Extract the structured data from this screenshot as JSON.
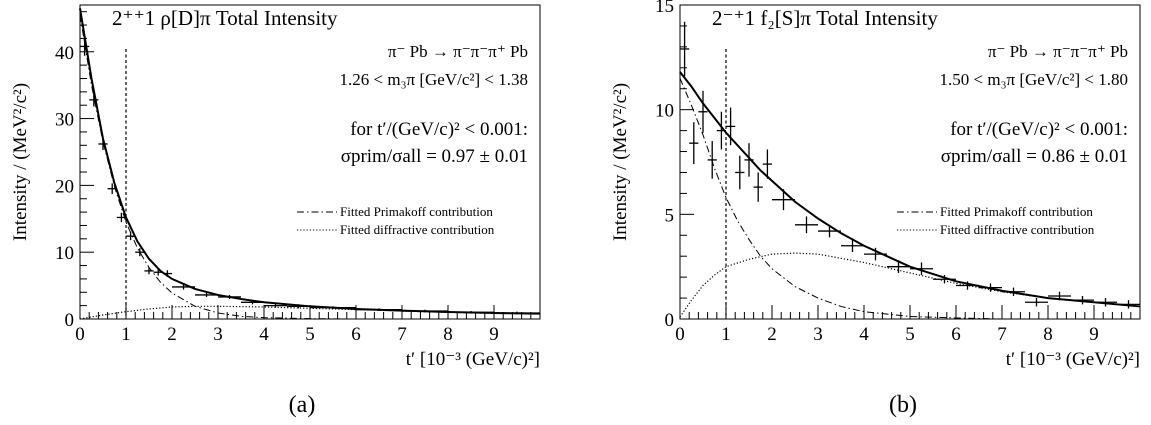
{
  "chart_data": [
    {
      "type": "line",
      "title": "2⁺⁺1 ρ[D]π Total Intensity",
      "panel_label": "(a)",
      "xlabel": "t′ [10⁻³ (GeV/c)²]",
      "ylabel": "Intensity / (MeV²/c²)",
      "xlim": [
        0,
        10
      ],
      "ylim": [
        0,
        47
      ],
      "x_ticks": [
        0,
        1,
        2,
        3,
        4,
        5,
        6,
        7,
        8,
        9
      ],
      "y_ticks": [
        0,
        10,
        20,
        30,
        40
      ],
      "vline_x": 1,
      "annotations": {
        "reaction": "π⁻ Pb → π⁻π⁻π⁺ Pb",
        "mass_range": "1.26 < m₃π [GeV/c²] < 1.38",
        "cut": "for t′/(GeV/c)² < 0.001:",
        "ratio": "σprim/σall = 0.97 ± 0.01"
      },
      "legend": [
        "Fitted Primakoff contribution",
        "Fitted diffractive contribution"
      ],
      "data_points": [
        {
          "x": 0.1,
          "y": 40.8,
          "ex": 0.1,
          "ey": 1.4
        },
        {
          "x": 0.3,
          "y": 32.8,
          "ex": 0.1,
          "ey": 1.0
        },
        {
          "x": 0.5,
          "y": 26.2,
          "ex": 0.1,
          "ey": 0.9
        },
        {
          "x": 0.7,
          "y": 19.5,
          "ex": 0.1,
          "ey": 0.8
        },
        {
          "x": 0.9,
          "y": 15.2,
          "ex": 0.1,
          "ey": 0.7
        },
        {
          "x": 1.1,
          "y": 12.4,
          "ex": 0.1,
          "ey": 0.6
        },
        {
          "x": 1.3,
          "y": 10.0,
          "ex": 0.1,
          "ey": 0.6
        },
        {
          "x": 1.5,
          "y": 7.2,
          "ex": 0.1,
          "ey": 0.5
        },
        {
          "x": 1.7,
          "y": 7.0,
          "ex": 0.1,
          "ey": 0.5
        },
        {
          "x": 1.9,
          "y": 6.8,
          "ex": 0.1,
          "ey": 0.5
        },
        {
          "x": 2.25,
          "y": 4.8,
          "ex": 0.25,
          "ey": 0.4
        },
        {
          "x": 2.75,
          "y": 3.6,
          "ex": 0.25,
          "ey": 0.3
        },
        {
          "x": 3.25,
          "y": 3.3,
          "ex": 0.25,
          "ey": 0.3
        },
        {
          "x": 3.75,
          "y": 2.5,
          "ex": 0.25,
          "ey": 0.3
        },
        {
          "x": 4.25,
          "y": 2.0,
          "ex": 0.25,
          "ey": 0.3
        },
        {
          "x": 4.75,
          "y": 1.9,
          "ex": 0.25,
          "ey": 0.3
        },
        {
          "x": 5.5,
          "y": 1.7,
          "ex": 0.5,
          "ey": 0.2
        },
        {
          "x": 6.5,
          "y": 1.4,
          "ex": 0.5,
          "ey": 0.2
        },
        {
          "x": 7.5,
          "y": 1.2,
          "ex": 0.5,
          "ey": 0.2
        },
        {
          "x": 8.5,
          "y": 1.0,
          "ex": 0.5,
          "ey": 0.2
        },
        {
          "x": 9.5,
          "y": 0.9,
          "ex": 0.5,
          "ey": 0.2
        }
      ],
      "curves": {
        "total": [
          [
            0,
            46.5
          ],
          [
            0.25,
            36.0
          ],
          [
            0.5,
            27.0
          ],
          [
            0.75,
            20.3
          ],
          [
            1.0,
            15.2
          ],
          [
            1.25,
            11.6
          ],
          [
            1.5,
            9.0
          ],
          [
            1.75,
            7.2
          ],
          [
            2.0,
            6.0
          ],
          [
            2.5,
            4.5
          ],
          [
            3.0,
            3.6
          ],
          [
            3.5,
            3.0
          ],
          [
            4.0,
            2.5
          ],
          [
            5.0,
            1.9
          ],
          [
            6.0,
            1.5
          ],
          [
            7.0,
            1.25
          ],
          [
            8.0,
            1.05
          ],
          [
            9.0,
            0.9
          ],
          [
            10.0,
            0.8
          ]
        ],
        "primakoff": [
          [
            0,
            45.5
          ],
          [
            0.25,
            35.0
          ],
          [
            0.5,
            26.5
          ],
          [
            0.75,
            19.8
          ],
          [
            1.0,
            14.5
          ],
          [
            1.25,
            10.6
          ],
          [
            1.5,
            7.7
          ],
          [
            1.75,
            5.5
          ],
          [
            2.0,
            3.9
          ],
          [
            2.5,
            1.9
          ],
          [
            3.0,
            0.9
          ],
          [
            3.5,
            0.4
          ],
          [
            4.0,
            0.2
          ],
          [
            5.0,
            0.05
          ],
          [
            6.0,
            0.0
          ],
          [
            10.0,
            0.0
          ]
        ],
        "diffractive": [
          [
            0,
            0
          ],
          [
            0.5,
            0.6
          ],
          [
            1.0,
            1.1
          ],
          [
            1.5,
            1.5
          ],
          [
            2.0,
            1.8
          ],
          [
            2.5,
            1.9
          ],
          [
            3.0,
            1.9
          ],
          [
            4.0,
            1.8
          ],
          [
            5.0,
            1.6
          ],
          [
            6.0,
            1.4
          ],
          [
            7.0,
            1.2
          ],
          [
            8.0,
            1.0
          ],
          [
            9.0,
            0.9
          ],
          [
            10.0,
            0.8
          ]
        ]
      }
    },
    {
      "type": "line",
      "title": "2⁻⁺1 f₂[S]π Total Intensity",
      "panel_label": "(b)",
      "xlabel": "t′ [10⁻³ (GeV/c)²]",
      "ylabel": "Intensity / (MeV²/c²)",
      "xlim": [
        0,
        10
      ],
      "ylim": [
        0,
        15
      ],
      "x_ticks": [
        0,
        1,
        2,
        3,
        4,
        5,
        6,
        7,
        8,
        9
      ],
      "y_ticks": [
        0,
        5,
        10,
        15
      ],
      "vline_x": 1,
      "annotations": {
        "reaction": "π⁻ Pb → π⁻π⁻π⁺ Pb",
        "mass_range": "1.50 < m₃π [GeV/c²] < 1.80",
        "cut": "for t′/(GeV/c)² < 0.001:",
        "ratio": "σprim/σall = 0.86 ± 0.01"
      },
      "legend": [
        "Fitted Primakoff contribution",
        "Fitted diffractive contribution"
      ],
      "data_points": [
        {
          "x": 0.1,
          "y": 12.9,
          "ex": 0.1,
          "ey": 1.3
        },
        {
          "x": 0.3,
          "y": 8.4,
          "ex": 0.1,
          "ey": 1.0
        },
        {
          "x": 0.5,
          "y": 9.9,
          "ex": 0.1,
          "ey": 1.0
        },
        {
          "x": 0.7,
          "y": 7.6,
          "ex": 0.1,
          "ey": 0.9
        },
        {
          "x": 0.9,
          "y": 9.0,
          "ex": 0.1,
          "ey": 0.9
        },
        {
          "x": 1.1,
          "y": 9.2,
          "ex": 0.1,
          "ey": 0.9
        },
        {
          "x": 1.3,
          "y": 7.0,
          "ex": 0.1,
          "ey": 0.8
        },
        {
          "x": 1.5,
          "y": 7.6,
          "ex": 0.1,
          "ey": 0.8
        },
        {
          "x": 1.7,
          "y": 6.3,
          "ex": 0.1,
          "ey": 0.7
        },
        {
          "x": 1.9,
          "y": 7.4,
          "ex": 0.1,
          "ey": 0.7
        },
        {
          "x": 2.25,
          "y": 5.7,
          "ex": 0.25,
          "ey": 0.5
        },
        {
          "x": 2.75,
          "y": 4.5,
          "ex": 0.25,
          "ey": 0.4
        },
        {
          "x": 3.25,
          "y": 4.2,
          "ex": 0.25,
          "ey": 0.3
        },
        {
          "x": 3.75,
          "y": 3.5,
          "ex": 0.25,
          "ey": 0.3
        },
        {
          "x": 4.25,
          "y": 3.1,
          "ex": 0.25,
          "ey": 0.3
        },
        {
          "x": 4.75,
          "y": 2.5,
          "ex": 0.25,
          "ey": 0.3
        },
        {
          "x": 5.25,
          "y": 2.4,
          "ex": 0.25,
          "ey": 0.3
        },
        {
          "x": 5.75,
          "y": 1.9,
          "ex": 0.25,
          "ey": 0.2
        },
        {
          "x": 6.25,
          "y": 1.6,
          "ex": 0.25,
          "ey": 0.2
        },
        {
          "x": 6.75,
          "y": 1.5,
          "ex": 0.25,
          "ey": 0.2
        },
        {
          "x": 7.25,
          "y": 1.3,
          "ex": 0.25,
          "ey": 0.2
        },
        {
          "x": 7.75,
          "y": 0.8,
          "ex": 0.25,
          "ey": 0.2
        },
        {
          "x": 8.25,
          "y": 1.1,
          "ex": 0.25,
          "ey": 0.2
        },
        {
          "x": 8.75,
          "y": 0.9,
          "ex": 0.25,
          "ey": 0.2
        },
        {
          "x": 9.25,
          "y": 0.8,
          "ex": 0.25,
          "ey": 0.2
        },
        {
          "x": 9.75,
          "y": 0.7,
          "ex": 0.25,
          "ey": 0.2
        }
      ],
      "curves": {
        "total": [
          [
            0,
            11.8
          ],
          [
            0.25,
            11.1
          ],
          [
            0.5,
            10.3
          ],
          [
            0.75,
            9.6
          ],
          [
            1.0,
            8.9
          ],
          [
            1.25,
            8.3
          ],
          [
            1.5,
            7.7
          ],
          [
            1.75,
            7.1
          ],
          [
            2.0,
            6.6
          ],
          [
            2.5,
            5.6
          ],
          [
            3.0,
            4.8
          ],
          [
            3.5,
            4.1
          ],
          [
            4.0,
            3.5
          ],
          [
            4.5,
            3.0
          ],
          [
            5.0,
            2.5
          ],
          [
            6.0,
            1.8
          ],
          [
            7.0,
            1.35
          ],
          [
            8.0,
            1.0
          ],
          [
            9.0,
            0.8
          ],
          [
            10.0,
            0.6
          ]
        ],
        "primakoff": [
          [
            0,
            11.5
          ],
          [
            0.25,
            10.2
          ],
          [
            0.5,
            8.8
          ],
          [
            0.75,
            7.2
          ],
          [
            1.0,
            5.8
          ],
          [
            1.25,
            4.7
          ],
          [
            1.5,
            3.8
          ],
          [
            1.75,
            3.0
          ],
          [
            2.0,
            2.4
          ],
          [
            2.5,
            1.55
          ],
          [
            3.0,
            1.0
          ],
          [
            3.5,
            0.6
          ],
          [
            4.0,
            0.35
          ],
          [
            5.0,
            0.12
          ],
          [
            6.0,
            0.05
          ],
          [
            7.0,
            0.0
          ],
          [
            10.0,
            0.0
          ]
        ],
        "diffractive": [
          [
            0,
            0.1
          ],
          [
            0.25,
            0.9
          ],
          [
            0.5,
            1.6
          ],
          [
            0.75,
            2.1
          ],
          [
            1.0,
            2.5
          ],
          [
            1.5,
            2.85
          ],
          [
            2.0,
            3.1
          ],
          [
            2.5,
            3.15
          ],
          [
            3.0,
            3.1
          ],
          [
            3.5,
            2.9
          ],
          [
            4.0,
            2.7
          ],
          [
            5.0,
            2.2
          ],
          [
            6.0,
            1.7
          ],
          [
            7.0,
            1.3
          ],
          [
            8.0,
            1.0
          ],
          [
            9.0,
            0.8
          ],
          [
            10.0,
            0.6
          ]
        ]
      }
    }
  ]
}
